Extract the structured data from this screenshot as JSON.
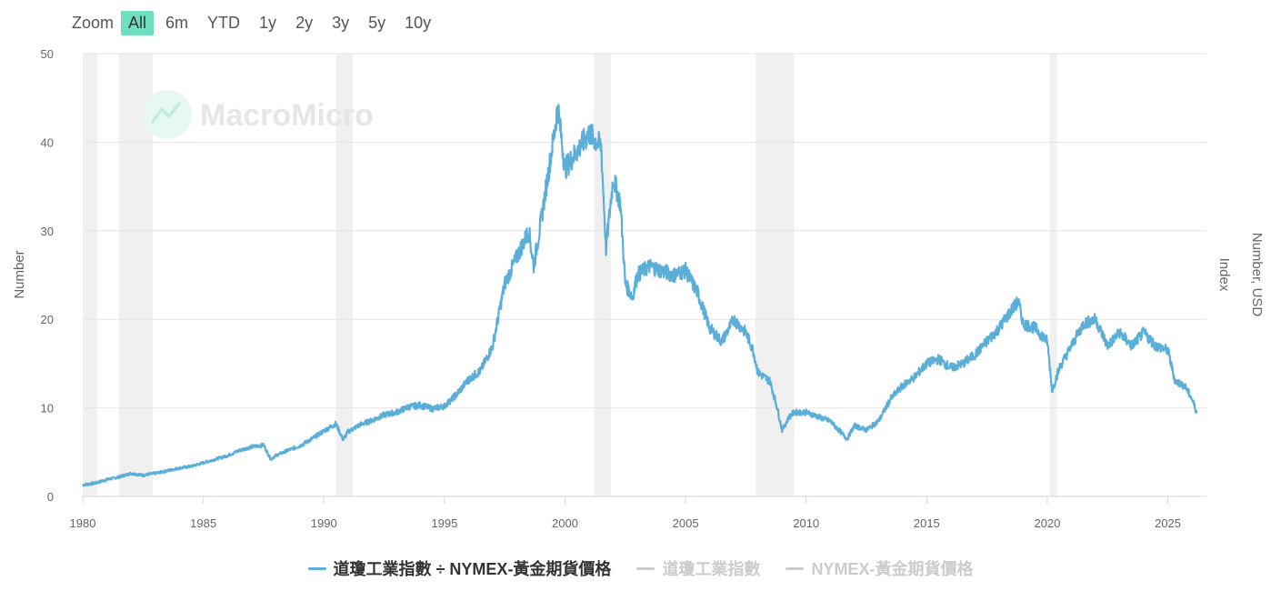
{
  "zoom": {
    "label": "Zoom",
    "options": [
      "All",
      "6m",
      "YTD",
      "1y",
      "2y",
      "3y",
      "5y",
      "10y"
    ],
    "active": "All"
  },
  "watermark": "MacroMicro",
  "colors": {
    "series": "#5aaed8",
    "accent": "#6fe0bf",
    "recession": "#f0f0f0",
    "grid": "#e6e6e6",
    "disabled": "#cccccc"
  },
  "chart_data": {
    "type": "line",
    "ylabel": "Number",
    "ylabel_right_1": "Number, USD",
    "ylabel_right_2": "Index",
    "ylim": [
      0,
      50
    ],
    "yticks": [
      0,
      10,
      20,
      30,
      40,
      50
    ],
    "xlim": [
      1980,
      2026.6
    ],
    "xticks": [
      1980,
      1985,
      1990,
      1995,
      2000,
      2005,
      2010,
      2015,
      2020,
      2025
    ],
    "recessions": [
      [
        1980.0,
        1980.6
      ],
      [
        1981.5,
        1982.9
      ],
      [
        1990.5,
        1991.2
      ],
      [
        2001.2,
        2001.9
      ],
      [
        2007.9,
        2009.5
      ],
      [
        2020.1,
        2020.4
      ]
    ],
    "series": [
      {
        "name": "道瓊工業指數 ÷ NYMEX-黃金期貨價格",
        "visible": true,
        "x": [
          1980.0,
          1980.5,
          1981.0,
          1981.5,
          1982.0,
          1982.5,
          1983.0,
          1983.5,
          1984.0,
          1984.5,
          1985.0,
          1985.5,
          1986.0,
          1986.5,
          1987.0,
          1987.5,
          1987.8,
          1988.0,
          1988.5,
          1989.0,
          1989.5,
          1990.0,
          1990.5,
          1990.8,
          1991.0,
          1991.5,
          1992.0,
          1992.5,
          1993.0,
          1993.5,
          1994.0,
          1994.5,
          1995.0,
          1995.5,
          1996.0,
          1996.5,
          1997.0,
          1997.5,
          1998.0,
          1998.5,
          1998.7,
          1999.0,
          1999.5,
          1999.7,
          2000.0,
          2000.5,
          2001.0,
          2001.5,
          2001.7,
          2002.0,
          2002.3,
          2002.5,
          2002.8,
          2003.0,
          2003.5,
          2004.0,
          2004.5,
          2005.0,
          2005.5,
          2006.0,
          2006.5,
          2007.0,
          2007.5,
          2007.8,
          2008.0,
          2008.5,
          2008.8,
          2009.0,
          2009.3,
          2009.5,
          2010.0,
          2010.5,
          2011.0,
          2011.7,
          2012.0,
          2012.5,
          2013.0,
          2013.5,
          2014.0,
          2014.5,
          2015.0,
          2015.5,
          2016.0,
          2016.5,
          2017.0,
          2017.5,
          2018.0,
          2018.5,
          2018.8,
          2019.0,
          2019.5,
          2020.0,
          2020.2,
          2020.5,
          2021.0,
          2021.5,
          2022.0,
          2022.5,
          2023.0,
          2023.5,
          2024.0,
          2024.5,
          2025.0,
          2025.3,
          2025.7,
          2026.0,
          2026.2
        ],
        "values": [
          1.3,
          1.5,
          1.9,
          2.2,
          2.6,
          2.4,
          2.6,
          2.9,
          3.2,
          3.4,
          3.8,
          4.2,
          4.6,
          5.2,
          5.6,
          5.8,
          4.2,
          4.6,
          5.2,
          5.7,
          6.5,
          7.4,
          8.2,
          6.4,
          7.3,
          8.1,
          8.6,
          9.2,
          9.5,
          10.1,
          10.3,
          9.9,
          10.2,
          11.5,
          13.2,
          14.2,
          17.0,
          24.0,
          27.0,
          30.0,
          26.0,
          31.0,
          40.0,
          44.0,
          37.0,
          39.0,
          41.0,
          39.5,
          28.0,
          36.0,
          33.0,
          24.0,
          22.5,
          25.0,
          26.0,
          25.5,
          25.0,
          25.5,
          23.0,
          19.0,
          17.5,
          20.0,
          18.5,
          16.5,
          14.0,
          13.0,
          10.0,
          7.5,
          9.0,
          9.5,
          9.5,
          9.0,
          8.5,
          6.5,
          8.0,
          7.5,
          8.5,
          11.0,
          12.5,
          13.5,
          15.0,
          15.5,
          14.5,
          15.0,
          16.0,
          17.5,
          19.0,
          21.0,
          22.0,
          19.5,
          19.0,
          17.5,
          12.0,
          14.5,
          17.0,
          19.5,
          20.0,
          17.0,
          18.5,
          17.0,
          18.5,
          17.0,
          16.5,
          13.0,
          12.5,
          11.0,
          9.5
        ]
      },
      {
        "name": "道瓊工業指數",
        "visible": false
      },
      {
        "name": "NYMEX-黃金期貨價格",
        "visible": false
      }
    ]
  }
}
